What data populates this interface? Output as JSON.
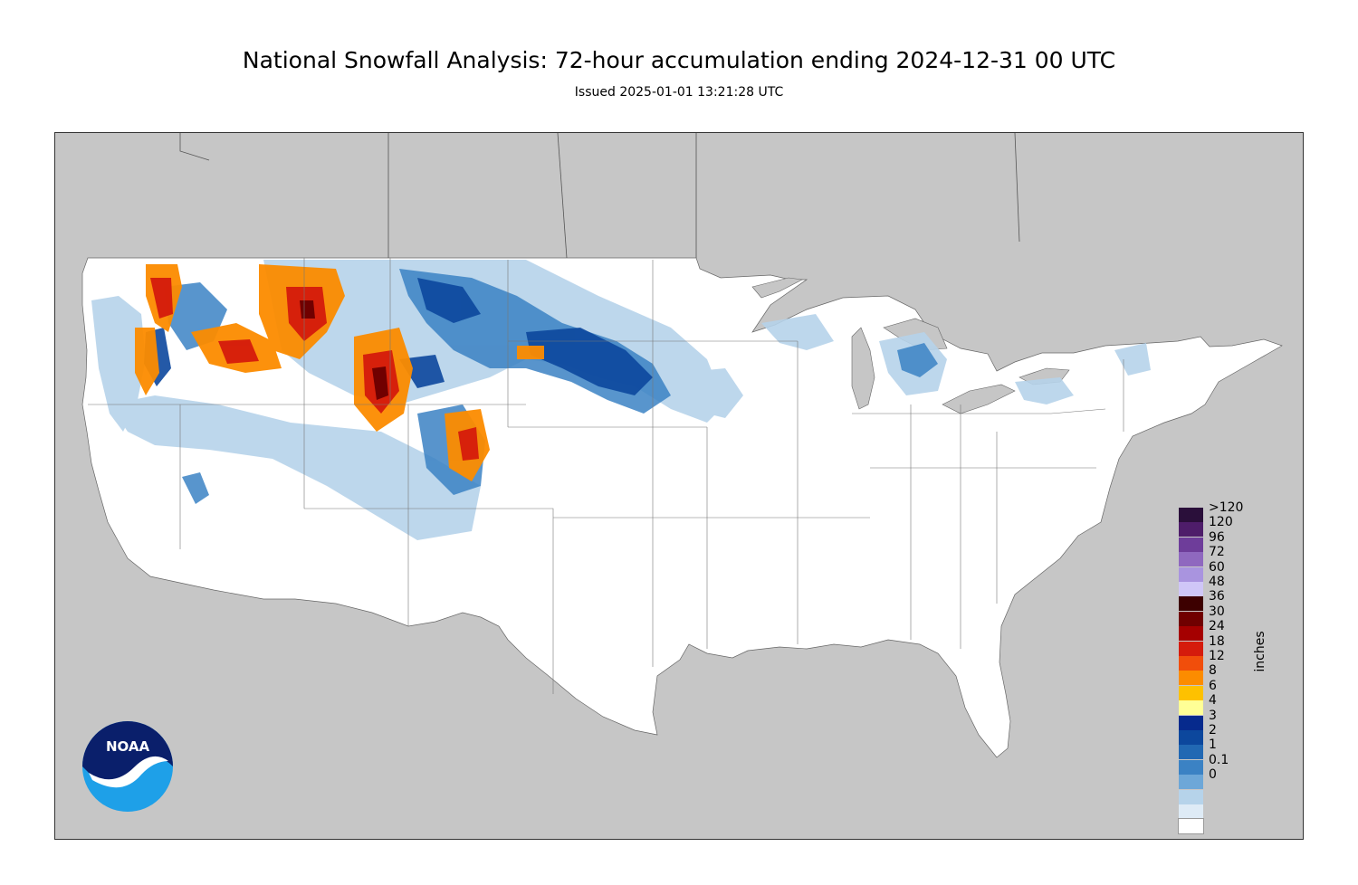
{
  "title": "National Snowfall Analysis: 72-hour accumulation ending 2024-12-31 00 UTC",
  "subtitle": "Issued 2025-01-01 13:21:28 UTC",
  "logo": {
    "text": "NOAA",
    "icon": "noaa-logo"
  },
  "map": {
    "land_color": "#ffffff",
    "outside_color": "#c6c6c6"
  },
  "legend": {
    "units": "inches",
    "items": [
      {
        "label": ">120",
        "color": "#2a0f3a"
      },
      {
        "label": "120",
        "color": "#4e1d6a"
      },
      {
        "label": "96",
        "color": "#6e3d9a"
      },
      {
        "label": "72",
        "color": "#8f68bf"
      },
      {
        "label": "60",
        "color": "#a994df"
      },
      {
        "label": "48",
        "color": "#cfc6f7"
      },
      {
        "label": "36",
        "color": "#3d0000"
      },
      {
        "label": "30",
        "color": "#700000"
      },
      {
        "label": "24",
        "color": "#a50000"
      },
      {
        "label": "18",
        "color": "#d51b0c"
      },
      {
        "label": "12",
        "color": "#f14e0b"
      },
      {
        "label": "8",
        "color": "#fc8c00"
      },
      {
        "label": "6",
        "color": "#fec100"
      },
      {
        "label": "4",
        "color": "#ffff96"
      },
      {
        "label": "3",
        "color": "#062a8d"
      },
      {
        "label": "2",
        "color": "#0c479d"
      },
      {
        "label": "1",
        "color": "#2168b3"
      },
      {
        "label": "0.1",
        "color": "#3b82c4"
      },
      {
        "label": "0",
        "color": "#6da7d8"
      }
    ],
    "extra_swatches": [
      "#b6d3ea",
      "#deebf6",
      "#ffffff"
    ]
  }
}
